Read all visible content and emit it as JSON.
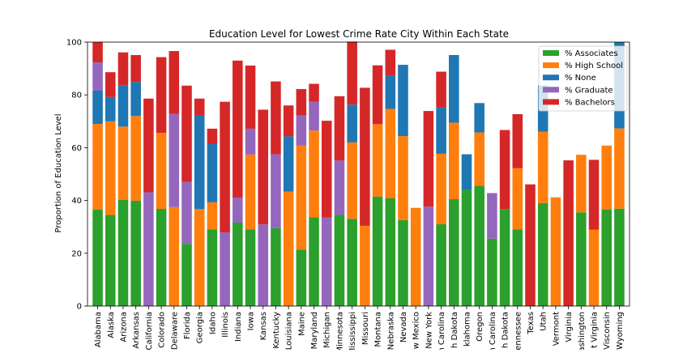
{
  "chart_data": {
    "type": "bar",
    "stacked": true,
    "title": "Education Level for Lowest Crime Rate City Within Each State",
    "xlabel": "",
    "ylabel": "Proportion of Education Level",
    "ylim": [
      0,
      100
    ],
    "yticks": [
      0,
      20,
      40,
      60,
      80,
      100
    ],
    "grid": false,
    "legend_position": "top-right",
    "categories": [
      "Alabama",
      "Alaska",
      "Arizona",
      "Arkansas",
      "California",
      "Colorado",
      "Delaware",
      "Florida",
      "Georgia",
      "Idaho",
      "Illinois",
      "Indiana",
      "Iowa",
      "Kansas",
      "Kentucky",
      "Louisiana",
      "Maine",
      "Maryland",
      "Michigan",
      "Minnesota",
      "Mississippi",
      "Missouri",
      "Montana",
      "Nebraska",
      "Nevada",
      "New Mexico",
      "New York",
      "North Carolina",
      "North Dakota",
      "Oklahoma",
      "Oregon",
      "South Carolina",
      "South Dakota",
      "Tennessee",
      "Texas",
      "Utah",
      "Vermont",
      "Virginia",
      "Washington",
      "West Virginia",
      "Wisconsin",
      "Wyoming"
    ],
    "category_labels_visible": [
      "Alabama",
      "Alaska",
      "Arizona",
      "Arkansas",
      "California",
      "Colorado",
      "Delaware",
      "Florida",
      "Georgia",
      "Idaho",
      "Illinois",
      "Indiana",
      "Iowa",
      "Kansas",
      "Kentucky",
      "Louisiana",
      "Maine",
      "Maryland",
      "Michigan",
      "Minnesota",
      "Mississippi",
      "Missouri",
      "Montana",
      "Nebraska",
      "Nevada",
      "w Mexico",
      "New York",
      "n Carolina",
      "h Dakota",
      "klahoma",
      "Oregon",
      "n Carolina",
      "h Dakota",
      "ennessee",
      "Texas",
      "Utah",
      "Vermont",
      "Virginia",
      "ashington",
      "t Virginia",
      "Visconsin",
      "Wyoming"
    ],
    "series": [
      {
        "name": "% Associates",
        "color": "#2ca02c",
        "values": [
          36.5,
          34.5,
          40.3,
          39.9,
          0,
          36.8,
          0,
          23.5,
          0,
          29,
          0,
          31.6,
          29,
          0,
          29.5,
          0,
          21.4,
          33.6,
          0,
          34.5,
          33,
          0,
          41.5,
          40.8,
          32.6,
          0,
          0,
          31,
          40.5,
          44,
          45.6,
          25.5,
          36.7,
          29,
          0,
          39,
          0,
          0,
          35.5,
          0,
          36.5,
          36.9
        ]
      },
      {
        "name": "% High School",
        "color": "#ff7f0e",
        "values": [
          32.5,
          35.5,
          27.7,
          32.1,
          0,
          28.8,
          37.5,
          0,
          36.8,
          10.3,
          0,
          0,
          28.4,
          0,
          0,
          43.4,
          39.5,
          32.9,
          0,
          0,
          29,
          30.4,
          27.4,
          33.9,
          31.8,
          37.2,
          0,
          26.7,
          29,
          0,
          20.2,
          0,
          0,
          23.2,
          0,
          27.1,
          41.2,
          0,
          21.8,
          28.9,
          24.3,
          30.4
        ]
      },
      {
        "name": "% None",
        "color": "#1f77b4",
        "values": [
          12.6,
          9.2,
          15.7,
          12.9,
          0,
          0,
          0,
          0,
          35.3,
          22.2,
          0,
          0,
          0,
          0,
          0,
          20.9,
          0,
          0,
          0,
          0,
          14.3,
          0,
          0,
          12.6,
          27,
          0,
          0,
          17.5,
          25.6,
          13.5,
          11.1,
          0,
          0,
          0,
          0,
          17.5,
          0,
          0,
          0,
          0,
          0,
          32.7
        ]
      },
      {
        "name": "% Graduate",
        "color": "#9467bd",
        "values": [
          10.7,
          0,
          0,
          0,
          43.1,
          0,
          35.3,
          23.5,
          0,
          0,
          27.9,
          9.5,
          9.8,
          30.9,
          28,
          0,
          11.3,
          10.9,
          33.6,
          20.6,
          0,
          0,
          0,
          0,
          0,
          0,
          37.7,
          0,
          0,
          0,
          0,
          17.3,
          0,
          0,
          0,
          0,
          0,
          0,
          0,
          0,
          0,
          0
        ]
      },
      {
        "name": "% Bachelors",
        "color": "#d62728",
        "values": [
          7.7,
          9.4,
          12.4,
          10.2,
          35.5,
          28.7,
          23.8,
          36.5,
          6.5,
          5.7,
          49.5,
          51.9,
          23.9,
          43.5,
          27.6,
          11.7,
          10,
          6.8,
          36.6,
          24.4,
          23.9,
          52.3,
          22.3,
          9.8,
          0,
          0,
          36.2,
          13.6,
          0,
          0,
          0,
          0,
          30,
          20.5,
          46.1,
          0,
          0,
          55.2,
          0,
          26.5,
          0,
          0
        ]
      }
    ]
  }
}
